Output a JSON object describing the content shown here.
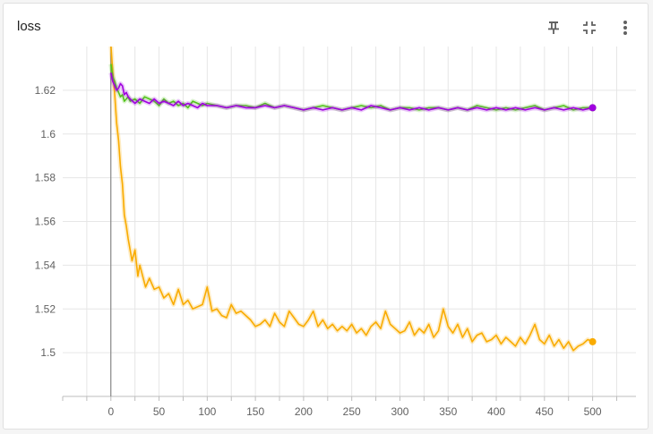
{
  "card": {
    "title": "loss",
    "tools": [
      {
        "name": "pin-icon",
        "label": ""
      },
      {
        "name": "fit-domain-icon",
        "label": ""
      },
      {
        "name": "more-vert-icon",
        "label": ""
      }
    ]
  },
  "chart_data": {
    "type": "line",
    "title": "loss",
    "xlabel": "",
    "ylabel": "",
    "xlim": [
      -50,
      545
    ],
    "ylim": [
      1.48,
      1.64
    ],
    "xticks": [
      0,
      50,
      100,
      150,
      200,
      250,
      300,
      350,
      400,
      450,
      500
    ],
    "yticks": [
      1.5,
      1.52,
      1.54,
      1.56,
      1.58,
      1.6,
      1.62
    ],
    "ytick_labels": [
      "1.5",
      "1.52",
      "1.54",
      "1.56",
      "1.58",
      "1.6",
      "1.62"
    ],
    "grid": true,
    "legend": "none",
    "series": [
      {
        "color": "#f9ab00",
        "x": [
          0,
          2,
          4,
          6,
          8,
          10,
          12,
          14,
          16,
          18,
          20,
          22,
          25,
          28,
          30,
          33,
          36,
          40,
          45,
          50,
          55,
          60,
          65,
          70,
          75,
          80,
          85,
          90,
          95,
          100,
          105,
          110,
          115,
          120,
          125,
          130,
          135,
          140,
          145,
          150,
          155,
          160,
          165,
          170,
          175,
          180,
          185,
          190,
          195,
          200,
          205,
          210,
          215,
          220,
          225,
          230,
          235,
          240,
          245,
          250,
          255,
          260,
          265,
          270,
          275,
          280,
          285,
          290,
          295,
          300,
          305,
          310,
          315,
          320,
          325,
          330,
          335,
          340,
          345,
          350,
          355,
          360,
          365,
          370,
          375,
          380,
          385,
          390,
          395,
          400,
          405,
          410,
          415,
          420,
          425,
          430,
          435,
          440,
          445,
          450,
          455,
          460,
          465,
          470,
          475,
          480,
          485,
          490,
          495,
          500
        ],
        "y": [
          1.641,
          1.628,
          1.618,
          1.605,
          1.597,
          1.585,
          1.577,
          1.563,
          1.558,
          1.552,
          1.547,
          1.542,
          1.547,
          1.535,
          1.54,
          1.535,
          1.53,
          1.534,
          1.529,
          1.53,
          1.525,
          1.527,
          1.522,
          1.529,
          1.522,
          1.524,
          1.52,
          1.521,
          1.522,
          1.53,
          1.519,
          1.52,
          1.517,
          1.516,
          1.522,
          1.518,
          1.519,
          1.517,
          1.515,
          1.512,
          1.513,
          1.515,
          1.512,
          1.518,
          1.514,
          1.512,
          1.519,
          1.516,
          1.513,
          1.512,
          1.515,
          1.519,
          1.512,
          1.515,
          1.511,
          1.513,
          1.51,
          1.512,
          1.51,
          1.513,
          1.509,
          1.511,
          1.508,
          1.512,
          1.514,
          1.511,
          1.519,
          1.513,
          1.511,
          1.509,
          1.51,
          1.514,
          1.508,
          1.511,
          1.509,
          1.513,
          1.507,
          1.51,
          1.52,
          1.512,
          1.509,
          1.513,
          1.507,
          1.511,
          1.505,
          1.508,
          1.509,
          1.505,
          1.506,
          1.508,
          1.504,
          1.507,
          1.505,
          1.503,
          1.507,
          1.504,
          1.508,
          1.513,
          1.506,
          1.504,
          1.508,
          1.503,
          1.506,
          1.502,
          1.505,
          1.501,
          1.503,
          1.504,
          1.506,
          1.505
        ]
      },
      {
        "color": "#52c41a",
        "x": [
          0,
          2,
          4,
          6,
          8,
          10,
          12,
          14,
          16,
          18,
          20,
          25,
          30,
          35,
          40,
          45,
          50,
          55,
          60,
          65,
          70,
          75,
          80,
          85,
          90,
          95,
          100,
          110,
          120,
          130,
          140,
          150,
          160,
          170,
          180,
          190,
          200,
          210,
          220,
          230,
          240,
          250,
          260,
          270,
          280,
          290,
          300,
          310,
          320,
          330,
          340,
          350,
          360,
          370,
          380,
          390,
          400,
          410,
          420,
          430,
          440,
          450,
          460,
          470,
          480,
          490,
          500
        ],
        "y": [
          1.632,
          1.626,
          1.624,
          1.621,
          1.619,
          1.617,
          1.618,
          1.615,
          1.616,
          1.617,
          1.615,
          1.616,
          1.614,
          1.617,
          1.616,
          1.615,
          1.613,
          1.616,
          1.614,
          1.615,
          1.613,
          1.614,
          1.612,
          1.615,
          1.614,
          1.613,
          1.614,
          1.613,
          1.612,
          1.613,
          1.613,
          1.612,
          1.614,
          1.612,
          1.613,
          1.612,
          1.611,
          1.612,
          1.613,
          1.612,
          1.611,
          1.612,
          1.613,
          1.612,
          1.613,
          1.611,
          1.612,
          1.612,
          1.611,
          1.612,
          1.612,
          1.611,
          1.612,
          1.611,
          1.613,
          1.612,
          1.611,
          1.612,
          1.611,
          1.612,
          1.613,
          1.611,
          1.612,
          1.613,
          1.611,
          1.612,
          1.612
        ]
      },
      {
        "color": "#a000e0",
        "x": [
          0,
          2,
          4,
          6,
          8,
          10,
          12,
          14,
          16,
          18,
          20,
          25,
          30,
          35,
          40,
          45,
          50,
          55,
          60,
          65,
          70,
          75,
          80,
          85,
          90,
          95,
          100,
          110,
          120,
          130,
          140,
          150,
          160,
          170,
          180,
          190,
          200,
          210,
          220,
          230,
          240,
          250,
          260,
          270,
          280,
          290,
          300,
          310,
          320,
          330,
          340,
          350,
          360,
          370,
          380,
          390,
          400,
          410,
          420,
          430,
          440,
          450,
          460,
          470,
          480,
          490,
          500
        ],
        "y": [
          1.628,
          1.624,
          1.622,
          1.62,
          1.621,
          1.623,
          1.622,
          1.618,
          1.619,
          1.617,
          1.616,
          1.614,
          1.616,
          1.615,
          1.614,
          1.616,
          1.614,
          1.615,
          1.614,
          1.613,
          1.615,
          1.613,
          1.614,
          1.613,
          1.612,
          1.614,
          1.613,
          1.613,
          1.612,
          1.613,
          1.612,
          1.612,
          1.613,
          1.612,
          1.613,
          1.612,
          1.611,
          1.612,
          1.611,
          1.612,
          1.611,
          1.612,
          1.611,
          1.613,
          1.612,
          1.611,
          1.612,
          1.611,
          1.612,
          1.611,
          1.612,
          1.611,
          1.612,
          1.611,
          1.612,
          1.611,
          1.612,
          1.611,
          1.612,
          1.611,
          1.612,
          1.611,
          1.612,
          1.611,
          1.612,
          1.611,
          1.612
        ]
      }
    ]
  }
}
